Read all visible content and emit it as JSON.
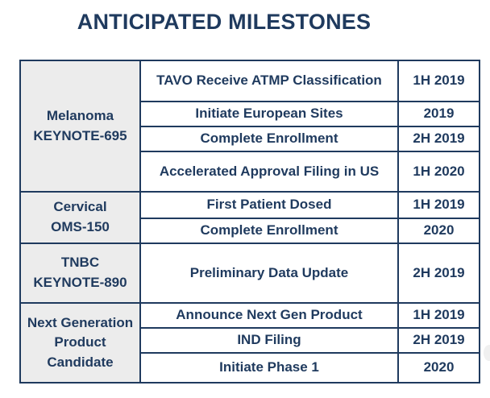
{
  "title": "ANTICIPATED MILESTONES",
  "groups": [
    {
      "label_lines": [
        "Melanoma",
        "KEYNOTE-695"
      ],
      "rows": [
        {
          "event": "TAVO Receive ATMP Classification",
          "date": "1H 2019"
        },
        {
          "event": "Initiate European Sites",
          "date": "2019"
        },
        {
          "event": "Complete Enrollment",
          "date": "2H 2019"
        },
        {
          "event": "Accelerated Approval Filing in US",
          "date": "1H 2020"
        }
      ]
    },
    {
      "label_lines": [
        "Cervical",
        "OMS-150"
      ],
      "rows": [
        {
          "event": "First Patient Dosed",
          "date": "1H 2019"
        },
        {
          "event": "Complete Enrollment",
          "date": "2020"
        }
      ]
    },
    {
      "label_lines": [
        "TNBC",
        "KEYNOTE-890"
      ],
      "rows": [
        {
          "event": "Preliminary Data Update",
          "date": "2H 2019"
        }
      ]
    },
    {
      "label_lines": [
        "Next Generation",
        "Product",
        "Candidate"
      ],
      "rows": [
        {
          "event": "Announce Next Gen Product",
          "date": "1H 2019"
        },
        {
          "event": "IND Filing",
          "date": "2H 2019"
        },
        {
          "event": "Initiate Phase 1",
          "date": "2020"
        }
      ]
    }
  ]
}
